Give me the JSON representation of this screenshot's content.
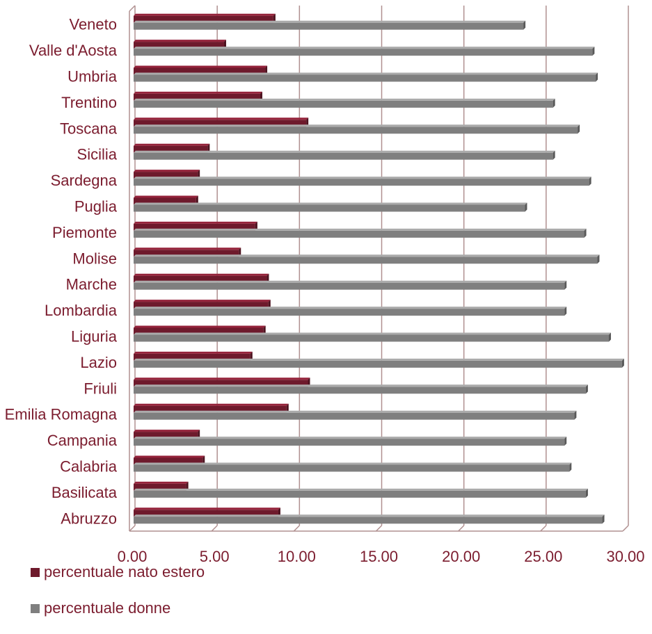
{
  "chart_data": {
    "type": "bar",
    "orientation": "horizontal",
    "categories": [
      "Abruzzo",
      "Basilicata",
      "Calabria",
      "Campania",
      "Emilia Romagna",
      "Friuli",
      "Lazio",
      "Liguria",
      "Lombardia",
      "Marche",
      "Molise",
      "Piemonte",
      "Puglia",
      "Sardegna",
      "Sicilia",
      "Toscana",
      "Trentino",
      "Umbria",
      "Valle d'Aosta",
      "Veneto"
    ],
    "series": [
      {
        "name": "percentuale nato estero",
        "color": "#6e1a2c",
        "values": [
          8.8,
          3.2,
          4.2,
          3.9,
          9.3,
          10.6,
          7.1,
          7.9,
          8.2,
          8.1,
          6.4,
          7.4,
          3.8,
          3.9,
          4.5,
          10.5,
          7.7,
          8.0,
          5.5,
          8.5
        ]
      },
      {
        "name": "percentuale donne",
        "color": "#7f7f7f",
        "values": [
          28.5,
          27.5,
          26.5,
          26.2,
          26.8,
          27.5,
          29.7,
          28.9,
          26.2,
          26.2,
          28.2,
          27.4,
          23.8,
          27.7,
          25.5,
          27.0,
          25.5,
          28.1,
          27.9,
          23.7
        ]
      }
    ],
    "xlim": [
      0,
      30
    ],
    "xticks": [
      "0.00",
      "5.00",
      "10.00",
      "15.00",
      "20.00",
      "25.00",
      "30.00"
    ],
    "grid": true,
    "legend_position": "bottom-left"
  }
}
